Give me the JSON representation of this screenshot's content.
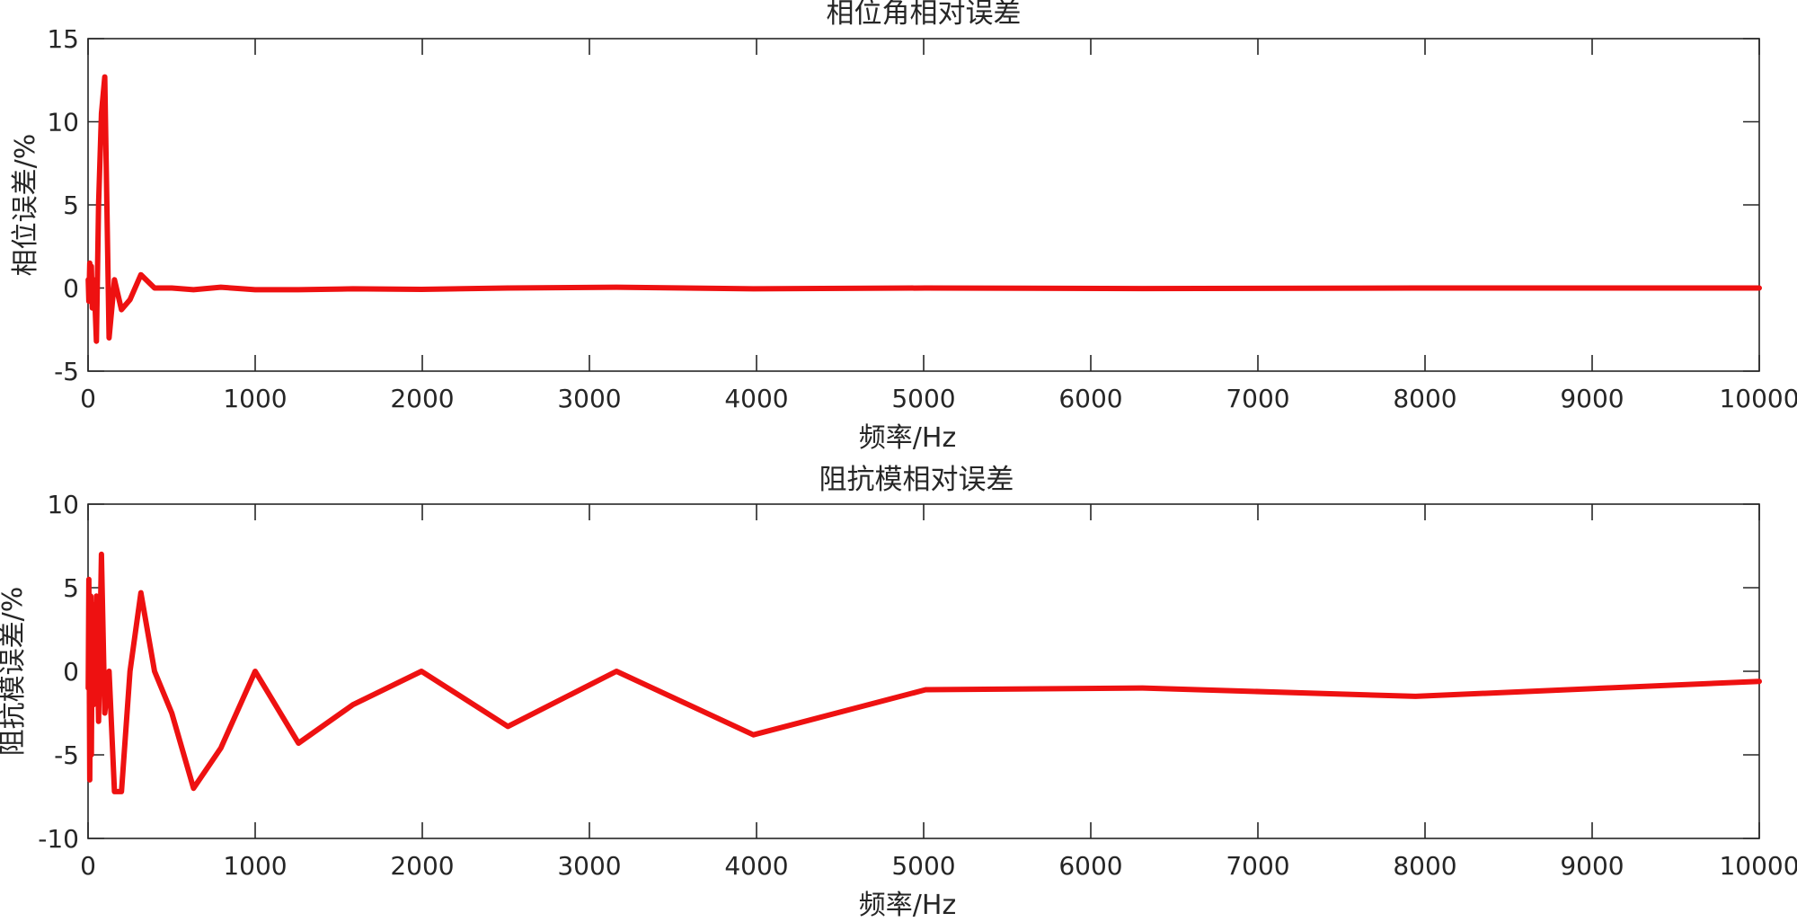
{
  "chart_data": [
    {
      "type": "line",
      "title": "相位角相对误差",
      "xlabel": "频率/Hz",
      "ylabel": "相位误差/%",
      "xlim": [
        0,
        10000
      ],
      "ylim": [
        -5,
        15
      ],
      "xticks": [
        0,
        1000,
        2000,
        3000,
        4000,
        5000,
        6000,
        7000,
        8000,
        9000,
        10000
      ],
      "yticks": [
        -5,
        0,
        5,
        10,
        15
      ],
      "grid": false,
      "line_color": "#ee1111",
      "series": [
        {
          "x": [
            1,
            5,
            10,
            16,
            20,
            25,
            32,
            40,
            50,
            63,
            80,
            100,
            126,
            158,
            200,
            251,
            316,
            398,
            501,
            631,
            794,
            1000,
            1259,
            1585,
            1995,
            2512,
            3162,
            3981,
            5012,
            6310,
            7943,
            10000
          ],
          "values": [
            0.5,
            -0.8,
            1.5,
            0.3,
            1.3,
            -1.2,
            0.5,
            -0.5,
            -3.2,
            5.0,
            10.5,
            12.7,
            -3.0,
            0.5,
            -1.3,
            -0.7,
            0.8,
            0.0,
            0.0,
            -0.1,
            0.05,
            -0.1,
            -0.1,
            -0.05,
            -0.08,
            0.0,
            0.05,
            -0.05,
            0.0,
            -0.03,
            0.0,
            0.0
          ]
        }
      ]
    },
    {
      "type": "line",
      "title": "阻抗模相对误差",
      "xlabel": "频率/Hz",
      "ylabel": "阻抗模误差/%",
      "xlim": [
        0,
        10000
      ],
      "ylim": [
        -10,
        10
      ],
      "xticks": [
        0,
        1000,
        2000,
        3000,
        4000,
        5000,
        6000,
        7000,
        8000,
        9000,
        10000
      ],
      "yticks": [
        -10,
        -5,
        0,
        5,
        10
      ],
      "grid": false,
      "line_color": "#ee1111",
      "series": [
        {
          "x": [
            1,
            5,
            10,
            16,
            20,
            25,
            32,
            40,
            50,
            63,
            80,
            100,
            126,
            158,
            200,
            251,
            316,
            398,
            501,
            631,
            794,
            1000,
            1259,
            1585,
            1995,
            2512,
            3162,
            3981,
            5012,
            6310,
            7943,
            10000
          ],
          "values": [
            -1.0,
            5.5,
            -6.5,
            4.5,
            -5.0,
            4.0,
            -2.0,
            1.0,
            4.5,
            -3.0,
            7.0,
            -2.5,
            0.0,
            -7.2,
            -7.2,
            0.0,
            4.7,
            0.0,
            -2.5,
            -7.0,
            -4.6,
            0.0,
            -4.3,
            -2.0,
            0.0,
            -3.3,
            0.0,
            -3.8,
            -1.1,
            -1.0,
            -1.5,
            -0.6
          ]
        }
      ]
    }
  ]
}
